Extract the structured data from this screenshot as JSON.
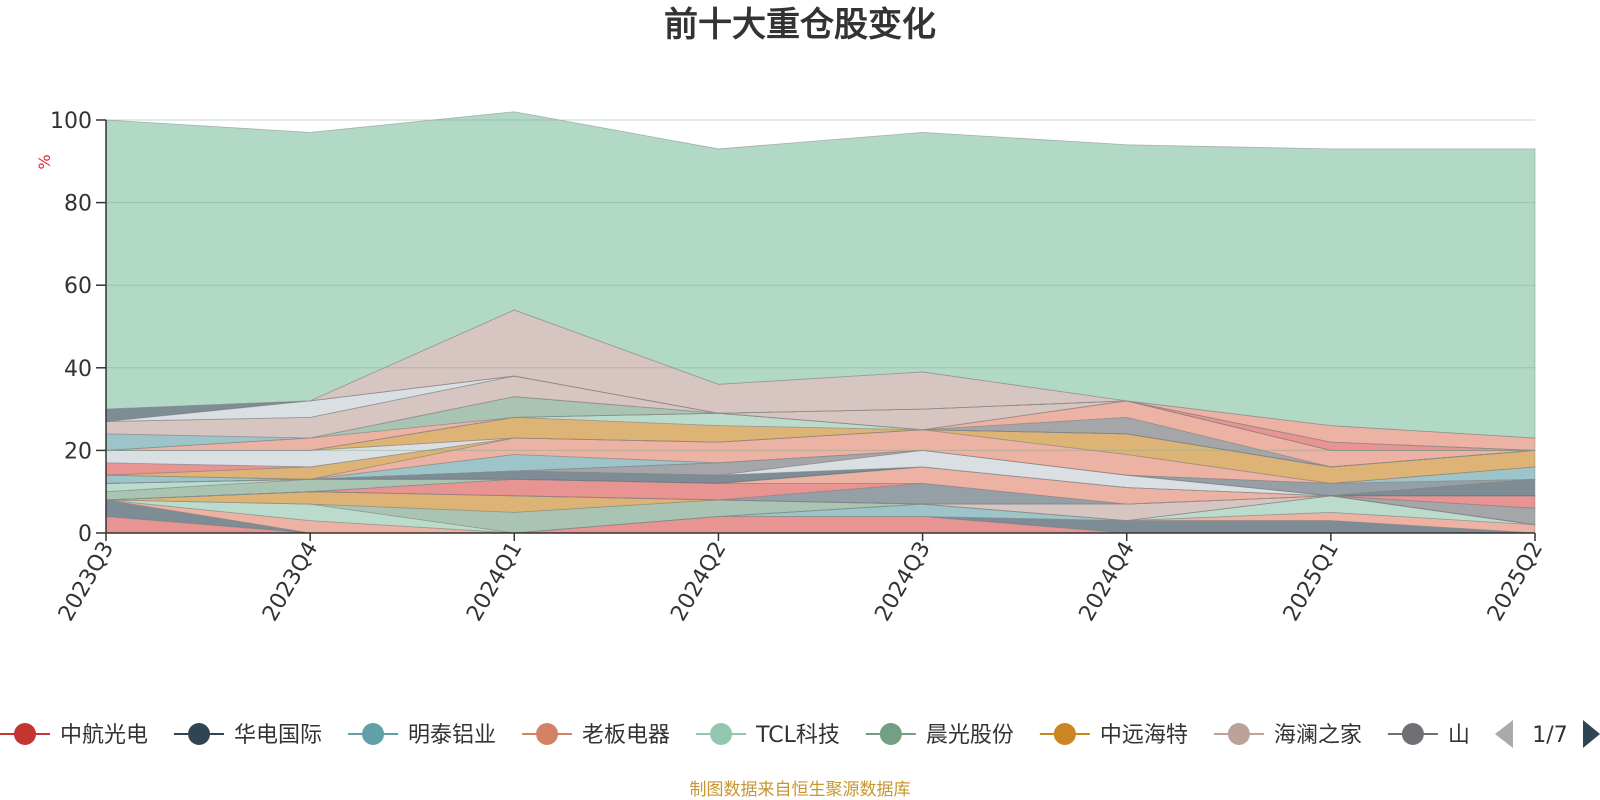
{
  "chart_data": {
    "type": "area",
    "title": "前十大重仓股变化",
    "ylabel": "%",
    "ylim": [
      0,
      100
    ],
    "yticks": [
      0,
      20,
      40,
      60,
      80,
      100
    ],
    "x": [
      "2023Q3",
      "2023Q4",
      "2024Q1",
      "2024Q2",
      "2024Q3",
      "2024Q4",
      "2025Q1",
      "2025Q2"
    ],
    "stacked": true,
    "grid": true,
    "legend_position": "bottom",
    "series": [
      {
        "name": "中航光电",
        "color": "#d9534f",
        "values": [
          4,
          0,
          0,
          4,
          4,
          0,
          0,
          0
        ]
      },
      {
        "name": "华电国际",
        "color": "#2f4554",
        "values": [
          4,
          0,
          0,
          0,
          0,
          3,
          3,
          0
        ]
      },
      {
        "name": "明泰铝业",
        "color": "#61a0a8",
        "values": [
          0,
          0,
          0,
          0,
          3,
          0,
          0,
          0
        ]
      },
      {
        "name": "老板电器",
        "color": "#e0826a",
        "values": [
          0,
          3,
          0,
          0,
          0,
          0,
          2,
          2
        ]
      },
      {
        "name": "TCL科技",
        "color": "#91c7ae",
        "values": [
          0,
          4,
          0,
          0,
          0,
          0,
          4,
          0
        ]
      },
      {
        "name": "晨光股份",
        "color": "#749f83",
        "values": [
          0,
          0,
          5,
          4,
          0,
          0,
          0,
          0
        ]
      },
      {
        "name": "中远海特",
        "color": "#ca8622",
        "values": [
          0,
          3,
          4,
          0,
          0,
          0,
          0,
          0
        ]
      },
      {
        "name": "海澜之家",
        "color": "#bda29a",
        "values": [
          0,
          0,
          0,
          0,
          0,
          4,
          0,
          0
        ]
      },
      {
        "name": "山",
        "color": "#6e7074",
        "values": [
          0,
          0,
          0,
          0,
          0,
          0,
          0,
          4
        ]
      },
      {
        "name": "",
        "color": "#546570",
        "values": [
          0,
          0,
          0,
          0,
          5,
          0,
          0,
          0
        ]
      },
      {
        "name": "",
        "color": "#c4ccd3",
        "values": [
          0,
          0,
          0,
          0,
          0,
          0,
          0,
          0
        ]
      },
      {
        "name": "",
        "color": "#d9534f",
        "values": [
          0,
          0,
          4,
          4,
          0,
          0,
          0,
          3
        ]
      },
      {
        "name": "",
        "color": "#e0826a",
        "values": [
          0,
          0,
          0,
          0,
          4,
          4,
          0,
          0
        ]
      },
      {
        "name": "",
        "color": "#749f83",
        "values": [
          2,
          3,
          0,
          0,
          0,
          0,
          0,
          0
        ]
      },
      {
        "name": "",
        "color": "#91c7ae",
        "values": [
          2,
          0,
          0,
          0,
          0,
          0,
          0,
          0
        ]
      },
      {
        "name": "",
        "color": "#2f4554",
        "values": [
          0,
          0,
          2,
          2,
          0,
          0,
          0,
          4
        ]
      },
      {
        "name": "",
        "color": "#c4ccd3",
        "values": [
          0,
          0,
          0,
          0,
          4,
          3,
          0,
          0
        ]
      },
      {
        "name": "",
        "color": "#6e7074",
        "values": [
          0,
          0,
          0,
          3,
          0,
          0,
          0,
          0
        ]
      },
      {
        "name": "",
        "color": "#546570",
        "values": [
          0,
          0,
          0,
          0,
          0,
          0,
          3,
          0
        ]
      },
      {
        "name": "",
        "color": "#61a0a8",
        "values": [
          2,
          0,
          4,
          0,
          0,
          0,
          0,
          3
        ]
      },
      {
        "name": "",
        "color": "#e0826a",
        "values": [
          0,
          0,
          4,
          5,
          5,
          5,
          0,
          0
        ]
      },
      {
        "name": "",
        "color": "#ca8622",
        "values": [
          0,
          3,
          0,
          0,
          0,
          5,
          4,
          4
        ]
      },
      {
        "name": "",
        "color": "#d9534f",
        "values": [
          3,
          0,
          0,
          0,
          0,
          0,
          0,
          0
        ]
      },
      {
        "name": "",
        "color": "#c4ccd3",
        "values": [
          3,
          4,
          0,
          0,
          0,
          0,
          0,
          0
        ]
      },
      {
        "name": "",
        "color": "#ca8622",
        "values": [
          0,
          0,
          5,
          4,
          0,
          0,
          0,
          0
        ]
      },
      {
        "name": "",
        "color": "#91c7ae",
        "values": [
          0,
          0,
          0,
          3,
          0,
          0,
          0,
          0
        ]
      },
      {
        "name": "",
        "color": "#6e7074",
        "values": [
          0,
          0,
          0,
          0,
          0,
          4,
          0,
          0
        ]
      },
      {
        "name": "",
        "color": "#e0826a",
        "values": [
          0,
          3,
          0,
          0,
          0,
          4,
          4,
          0
        ]
      },
      {
        "name": "",
        "color": "#749f83",
        "values": [
          0,
          0,
          5,
          0,
          0,
          0,
          0,
          0
        ]
      },
      {
        "name": "",
        "color": "#61a0a8",
        "values": [
          4,
          0,
          0,
          0,
          0,
          0,
          0,
          0
        ]
      },
      {
        "name": "",
        "color": "#bda29a",
        "values": [
          3,
          5,
          5,
          0,
          5,
          0,
          0,
          0
        ]
      },
      {
        "name": "",
        "color": "#d9534f",
        "values": [
          0,
          0,
          0,
          0,
          0,
          0,
          2,
          0
        ]
      },
      {
        "name": "",
        "color": "#c4ccd3",
        "values": [
          0,
          4,
          0,
          0,
          0,
          0,
          0,
          0
        ]
      },
      {
        "name": "",
        "color": "#2f4554",
        "values": [
          3,
          0,
          0,
          0,
          0,
          0,
          0,
          0
        ]
      },
      {
        "name": "",
        "color": "#e0826a",
        "values": [
          0,
          0,
          0,
          0,
          0,
          0,
          4,
          3
        ]
      },
      {
        "name": "",
        "color": "#bda29a",
        "values": [
          0,
          0,
          16,
          7,
          9,
          0,
          0,
          0
        ]
      },
      {
        "name": "",
        "color": "#91c7ae",
        "values": [
          70,
          65,
          48,
          57,
          58,
          62,
          67,
          70
        ]
      }
    ]
  },
  "legend": {
    "items": [
      {
        "label": "中航光电",
        "color": "#c23531"
      },
      {
        "label": "华电国际",
        "color": "#2f4554"
      },
      {
        "label": "明泰铝业",
        "color": "#61a0a8"
      },
      {
        "label": "老板电器",
        "color": "#d48265"
      },
      {
        "label": "TCL科技",
        "color": "#91c7ae"
      },
      {
        "label": "晨光股份",
        "color": "#749f83"
      },
      {
        "label": "中远海特",
        "color": "#ca8622"
      },
      {
        "label": "海澜之家",
        "color": "#bda29a"
      },
      {
        "label": "山",
        "color": "#6e7074"
      }
    ],
    "page": "1/7",
    "prev_icon": "triangle-left-icon",
    "next_icon": "triangle-right-icon"
  },
  "footer": {
    "source": "制图数据来自恒生聚源数据库"
  }
}
